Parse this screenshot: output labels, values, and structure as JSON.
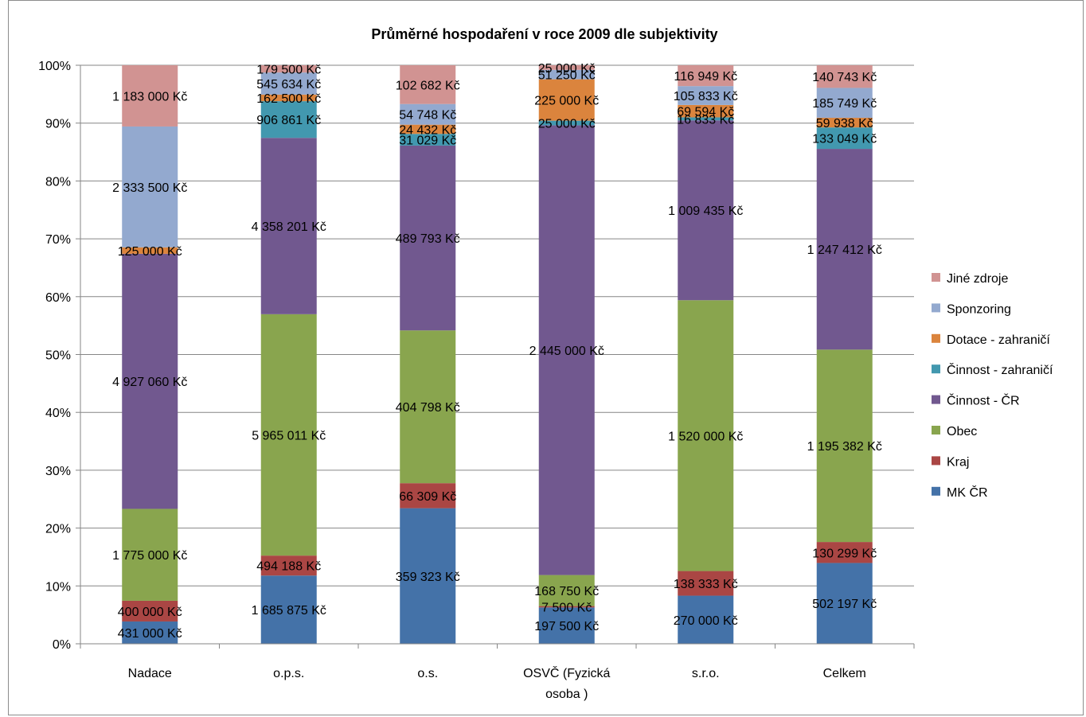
{
  "chart_data": {
    "type": "bar",
    "stacked": "percent",
    "title": "Průměrné hospodaření v roce 2009 dle subjektivity",
    "xlabel": "",
    "ylabel": "",
    "ylim": [
      0,
      100
    ],
    "yticks": [
      "0%",
      "10%",
      "20%",
      "30%",
      "40%",
      "50%",
      "60%",
      "70%",
      "80%",
      "90%",
      "100%"
    ],
    "grid": true,
    "legend_position": "right",
    "categories": [
      [
        "Nadace"
      ],
      [
        "o.p.s."
      ],
      [
        "o.s."
      ],
      [
        "OSVČ (Fyzická",
        "osoba )"
      ],
      [
        "s.r.o."
      ],
      [
        "Celkem"
      ]
    ],
    "series": [
      {
        "name": "MK ČR",
        "color": "#4472a8",
        "values": [
          431000,
          1685875,
          359323,
          197500,
          270000,
          502197
        ],
        "labels": [
          "431 000 Kč",
          "1 685 875 Kč",
          "359 323 Kč",
          "197 500 Kč",
          "270 000 Kč",
          "502 197 Kč"
        ]
      },
      {
        "name": "Kraj",
        "color": "#aa4644",
        "values": [
          400000,
          494188,
          66309,
          7500,
          138333,
          130299
        ],
        "labels": [
          "400 000 Kč",
          "494 188 Kč",
          "66 309 Kč",
          "7 500 Kč",
          "138 333 Kč",
          "130 299 Kč"
        ]
      },
      {
        "name": "Obec",
        "color": "#89a54e",
        "values": [
          1775000,
          5965011,
          404798,
          168750,
          1520000,
          1195382
        ],
        "labels": [
          "1 775 000 Kč",
          "5 965 011 Kč",
          "404 798 Kč",
          "168 750 Kč",
          "1 520 000 Kč",
          "1 195 382 Kč"
        ]
      },
      {
        "name": "Činnost - ČR",
        "color": "#71588f",
        "values": [
          4927060,
          4358201,
          489793,
          2445000,
          1009435,
          1247412
        ],
        "labels": [
          "4 927 060 Kč",
          "4 358 201 Kč",
          "489 793 Kč",
          "2 445 000 Kč",
          "1 009 435 Kč",
          "1 247 412 Kč"
        ]
      },
      {
        "name": "Činnost - zahraničí",
        "color": "#4298af",
        "values": [
          0,
          906861,
          31029,
          25000,
          16833,
          133049
        ],
        "labels": [
          "",
          "906 861 Kč",
          "31 029 Kč",
          "25 000 Kč",
          "16 833 Kč",
          "133 049 Kč"
        ]
      },
      {
        "name": "Dotace - zahraničí",
        "color": "#db843d",
        "values": [
          125000,
          162500,
          24432,
          225000,
          69594,
          59938
        ],
        "labels": [
          "125 000 Kč",
          "162 500 Kč",
          "24 432 Kč",
          "225 000 Kč",
          "69 594 Kč",
          "59 938 Kč"
        ]
      },
      {
        "name": "Sponzoring",
        "color": "#93a9cf",
        "values": [
          2333500,
          545634,
          54748,
          51250,
          105833,
          185749
        ],
        "labels": [
          "2 333 500 Kč",
          "545 634 Kč",
          "54 748 Kč",
          "51 250 Kč",
          "105 833 Kč",
          "185 749 Kč"
        ]
      },
      {
        "name": "Jiné zdroje",
        "color": "#d19392",
        "values": [
          1183000,
          179500,
          102682,
          25000,
          116949,
          140743
        ],
        "labels": [
          "1 183 000 Kč",
          "179 500 Kč",
          "102 682 Kč",
          "25 000 Kč",
          "116 949 Kč",
          "140 743 Kč"
        ]
      }
    ]
  }
}
